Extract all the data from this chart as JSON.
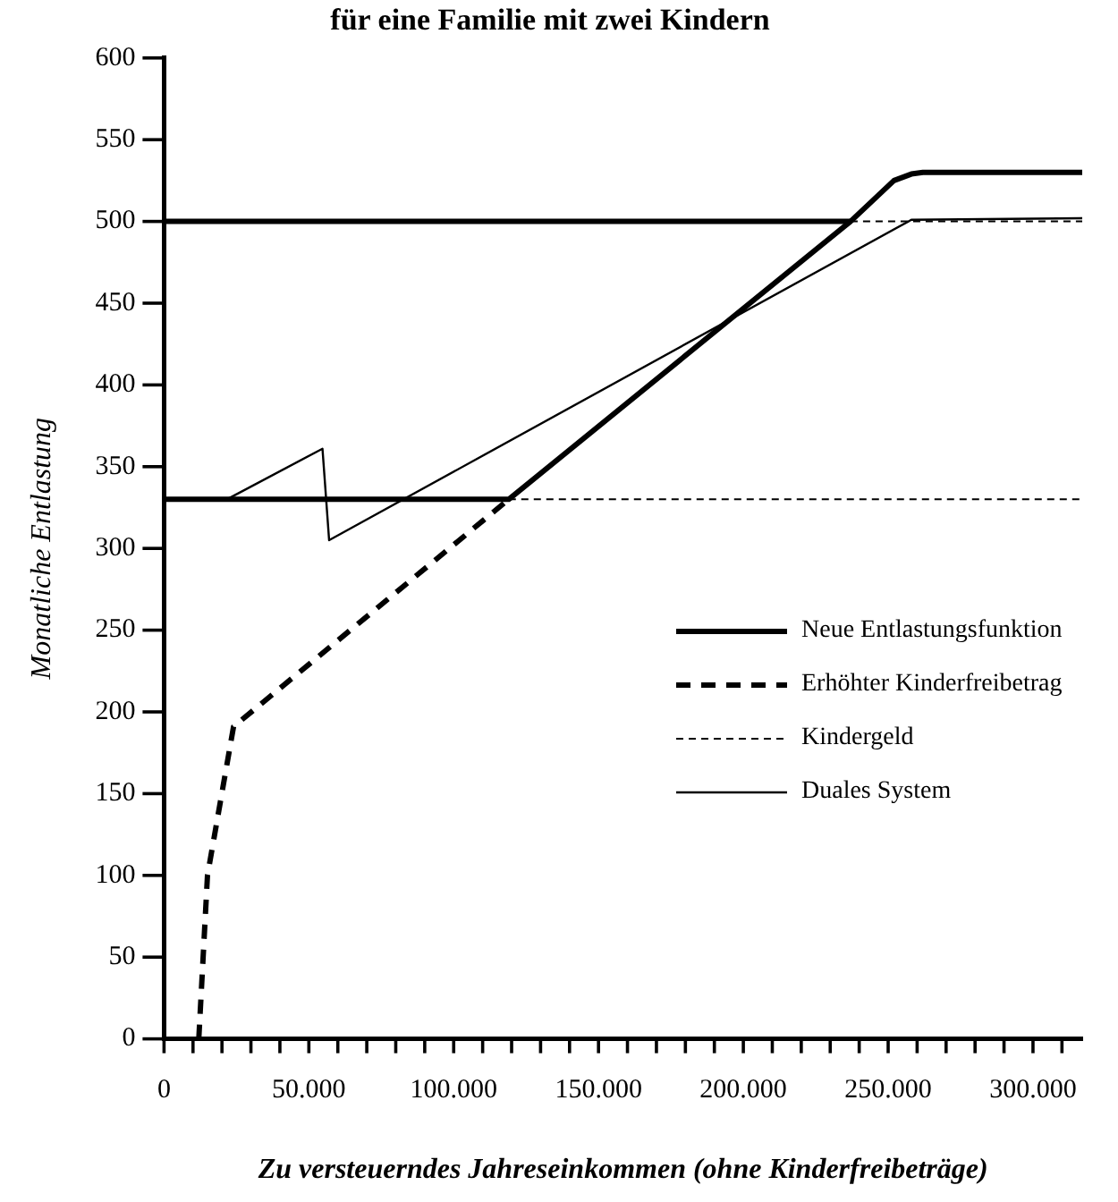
{
  "chart_data": {
    "type": "line",
    "title": "für eine Familie mit zwei Kindern",
    "xlabel": "Zu versteuerndes Jahreseinkommen (ohne Kinderfreibeträge)",
    "ylabel": "Monatliche Entlastung",
    "xlim": [
      0,
      317000
    ],
    "ylim": [
      0,
      600
    ],
    "xticks": [
      {
        "value": 0,
        "label": "0"
      },
      {
        "value": 10000,
        "label": null
      },
      {
        "value": 20000,
        "label": null
      },
      {
        "value": 30000,
        "label": null
      },
      {
        "value": 40000,
        "label": null
      },
      {
        "value": 50000,
        "label": "50.000"
      },
      {
        "value": 60000,
        "label": null
      },
      {
        "value": 70000,
        "label": null
      },
      {
        "value": 80000,
        "label": null
      },
      {
        "value": 90000,
        "label": null
      },
      {
        "value": 100000,
        "label": "100.000"
      },
      {
        "value": 110000,
        "label": null
      },
      {
        "value": 120000,
        "label": null
      },
      {
        "value": 130000,
        "label": null
      },
      {
        "value": 140000,
        "label": null
      },
      {
        "value": 150000,
        "label": "150.000"
      },
      {
        "value": 160000,
        "label": null
      },
      {
        "value": 170000,
        "label": null
      },
      {
        "value": 180000,
        "label": null
      },
      {
        "value": 190000,
        "label": null
      },
      {
        "value": 200000,
        "label": "200.000"
      },
      {
        "value": 210000,
        "label": null
      },
      {
        "value": 220000,
        "label": null
      },
      {
        "value": 230000,
        "label": null
      },
      {
        "value": 240000,
        "label": null
      },
      {
        "value": 250000,
        "label": "250.000"
      },
      {
        "value": 260000,
        "label": null
      },
      {
        "value": 270000,
        "label": null
      },
      {
        "value": 280000,
        "label": null
      },
      {
        "value": 290000,
        "label": null
      },
      {
        "value": 300000,
        "label": "300.000"
      },
      {
        "value": 310000,
        "label": null
      }
    ],
    "yticks": [
      0,
      50,
      100,
      150,
      200,
      250,
      300,
      350,
      400,
      450,
      500,
      550,
      600
    ],
    "grid": false,
    "legend": "right",
    "marker": "none",
    "series": [
      {
        "name": "Neue Entlastungsfunktion",
        "color": "#000000",
        "line_style": "solid",
        "x": [
          0,
          119000,
          237000,
          252000,
          258000,
          262000,
          317000
        ],
        "values": [
          330,
          330,
          500,
          525,
          529,
          530,
          530
        ]
      },
      {
        "color": "#000000",
        "line_style": "solid",
        "x": [
          0,
          237000
        ],
        "values": [
          500,
          500
        ]
      },
      {
        "name": "Erhöhter Kinderfreibetrag",
        "color": "#000000",
        "line_style": "dashed",
        "x": [
          12000,
          15000,
          24000,
          119000
        ],
        "values": [
          0,
          100,
          191,
          330
        ]
      },
      {
        "name": "Kindergeld",
        "color": "#000000",
        "line_style": "dotted",
        "x": [
          119000,
          317000,
          null,
          237000,
          317000
        ],
        "values": [
          330,
          330,
          null,
          500,
          500
        ]
      },
      {
        "name": "Duales System",
        "color": "#000000",
        "line_style": "solid",
        "x": [
          0,
          21700,
          54700,
          57000,
          258000,
          317000
        ],
        "values": [
          330,
          330,
          361,
          305,
          501,
          502
        ]
      }
    ]
  }
}
